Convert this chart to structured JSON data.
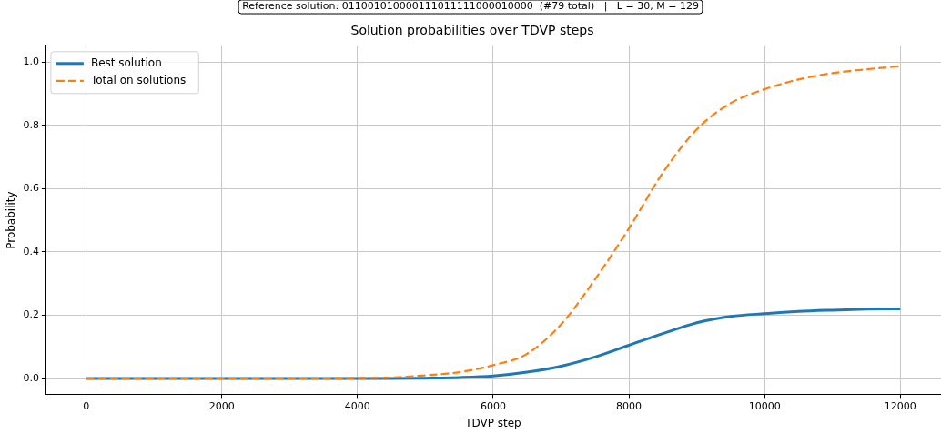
{
  "chart_data": {
    "type": "line",
    "title": "Solution probabilities over TDVP steps",
    "subtitle": "Reference solution: 011001010000111011111000010000  (#79 total)   |   L = 30, M = 129",
    "xlabel": "TDVP step",
    "ylabel": "Probability",
    "x": [
      0,
      500,
      1000,
      1500,
      2000,
      2500,
      3000,
      3500,
      4000,
      4500,
      5000,
      5500,
      6000,
      6500,
      7000,
      7500,
      8000,
      8500,
      9000,
      9500,
      10000,
      10500,
      11000,
      11500,
      12000
    ],
    "series": [
      {
        "name": "Best solution",
        "color": "#1f77b4",
        "line_style": "solid",
        "values": [
          0,
          0,
          0,
          0,
          0,
          0,
          0,
          0,
          0,
          0,
          0.001,
          0.003,
          0.008,
          0.02,
          0.039,
          0.068,
          0.105,
          0.142,
          0.176,
          0.196,
          0.205,
          0.212,
          0.216,
          0.219,
          0.22
        ]
      },
      {
        "name": "Total on solutions",
        "color": "#ff7f0e",
        "line_style": "dashed",
        "values": [
          0,
          0,
          0,
          0,
          0,
          0,
          0,
          0,
          0.001,
          0.003,
          0.01,
          0.02,
          0.042,
          0.078,
          0.171,
          0.313,
          0.474,
          0.65,
          0.787,
          0.87,
          0.914,
          0.945,
          0.965,
          0.977,
          0.987
        ]
      }
    ],
    "xlim": [
      -600,
      12600
    ],
    "xticks": [
      0,
      2000,
      4000,
      6000,
      8000,
      10000,
      12000
    ],
    "ylim": [
      -0.05,
      1.05
    ],
    "yticks": [
      {
        "value": 0,
        "label": "0.0"
      },
      {
        "value": 0.2,
        "label": "0.2"
      },
      {
        "value": 0.4,
        "label": "0.4"
      },
      {
        "value": 0.6,
        "label": "0.6"
      },
      {
        "value": 0.8,
        "label": "0.8"
      },
      {
        "value": 1,
        "label": "1.0"
      }
    ],
    "grid": true,
    "legend": "top left",
    "marker": "none"
  }
}
